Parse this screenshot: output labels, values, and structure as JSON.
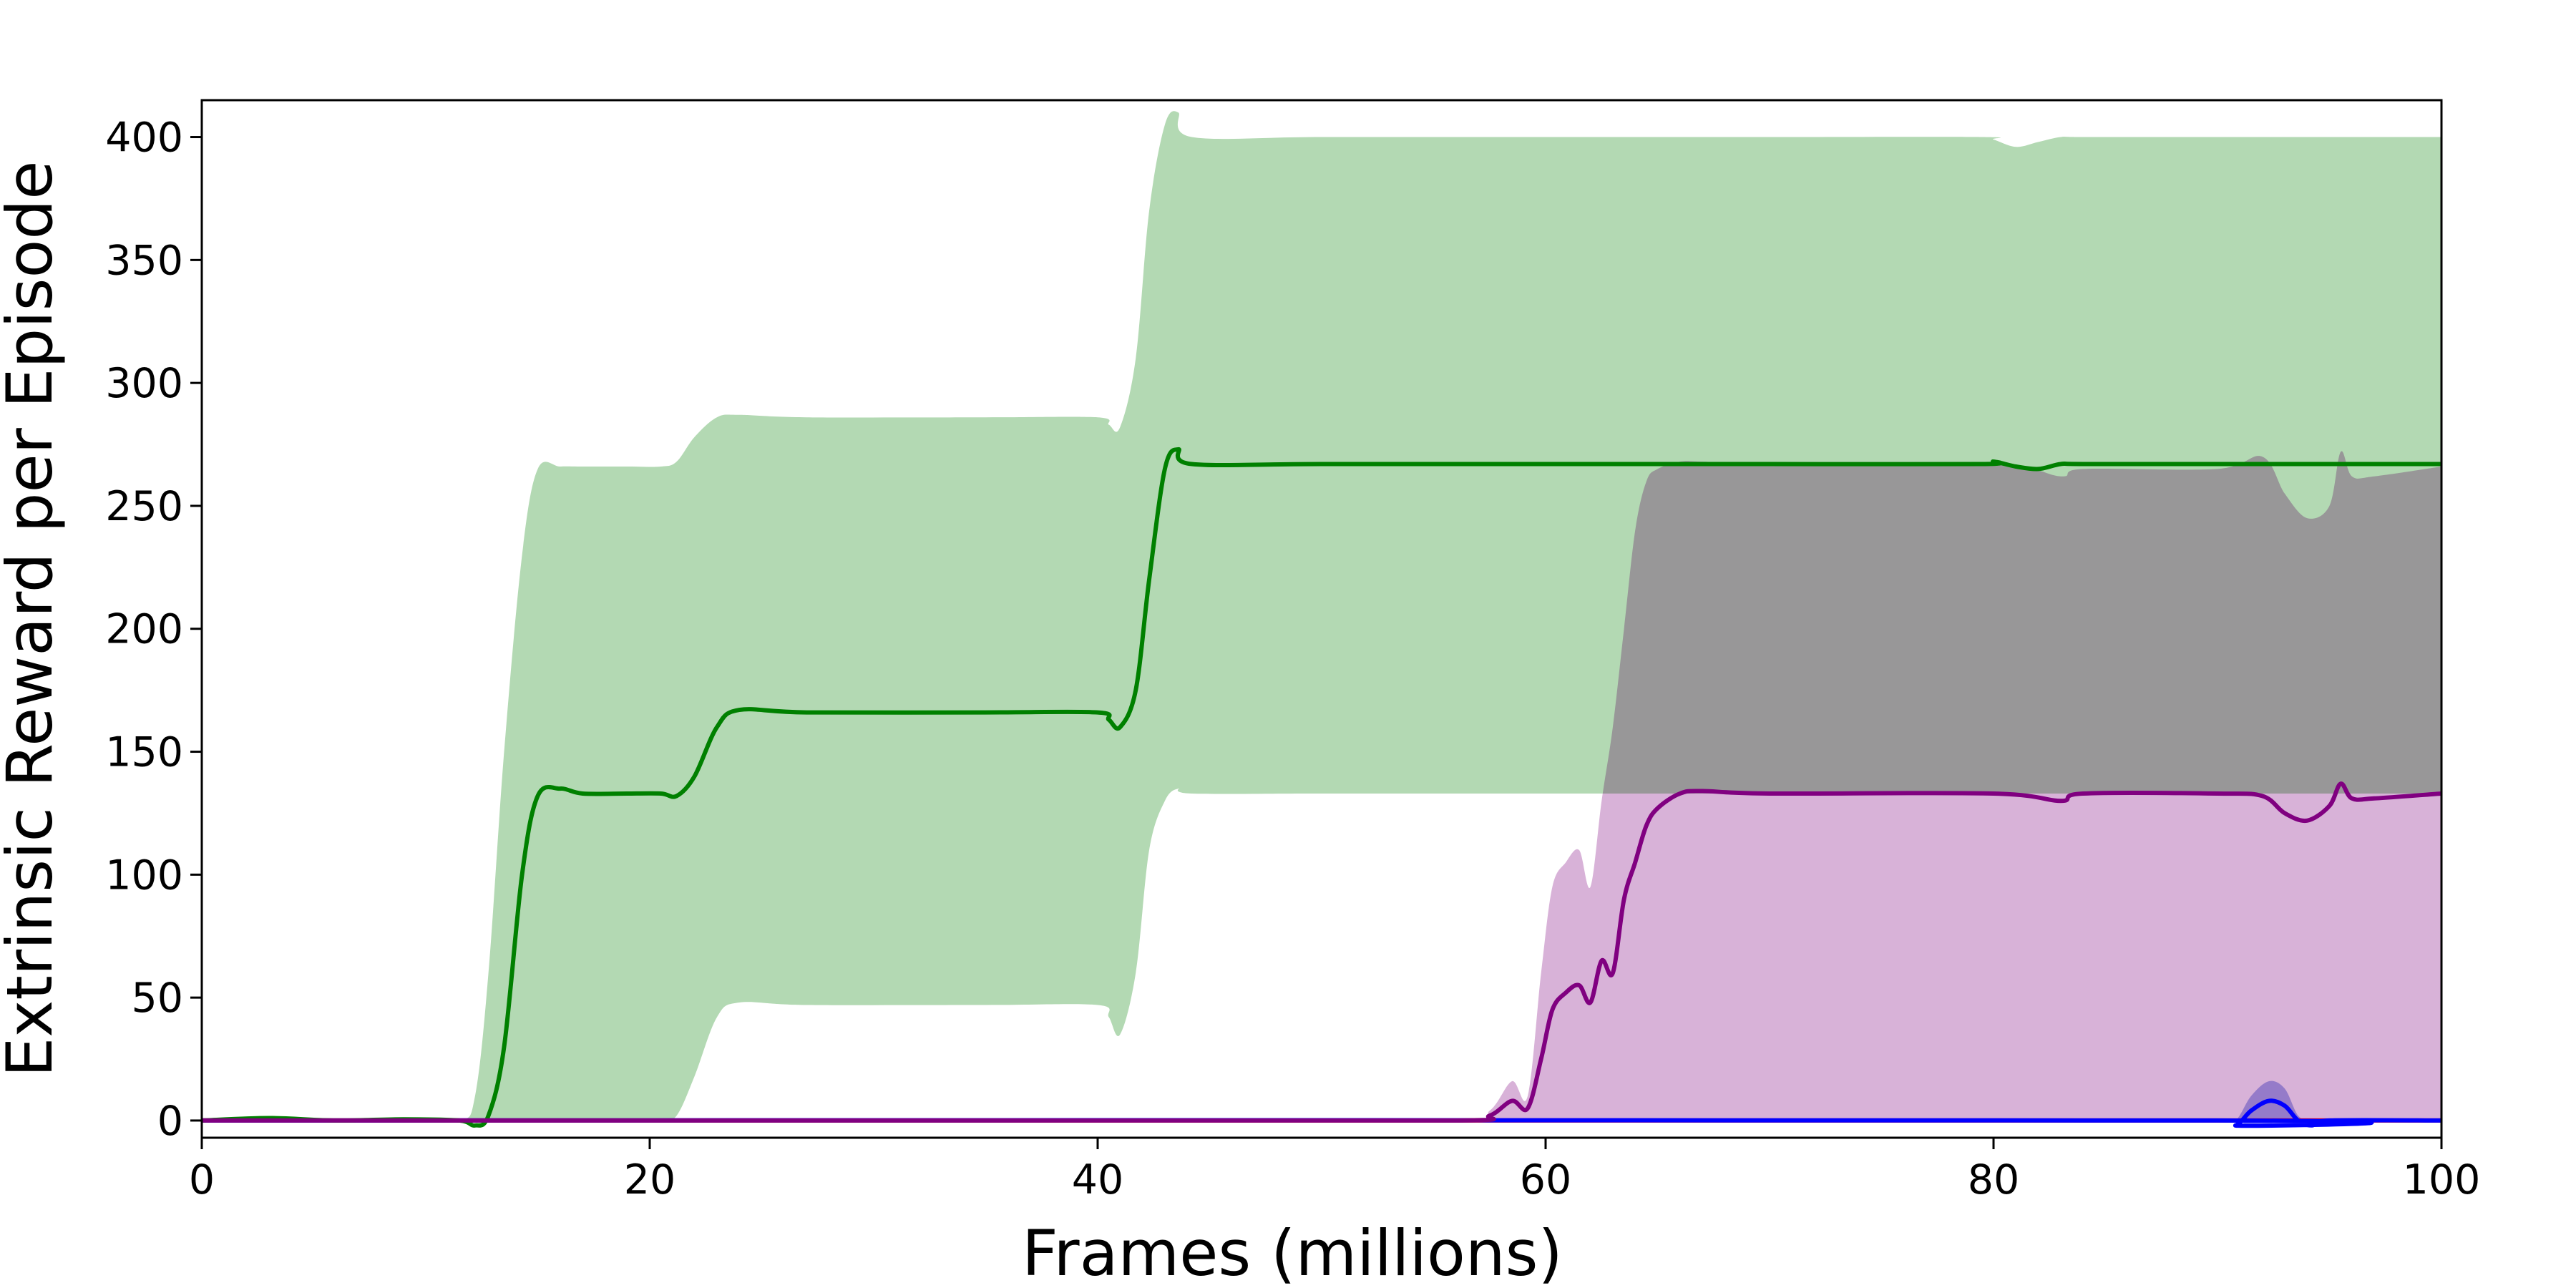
{
  "chart_data": {
    "type": "line",
    "title": "",
    "xlabel": "Frames (millions)",
    "ylabel": "Extrinsic Reward per Episode",
    "xlim": [
      0,
      100
    ],
    "ylim": [
      -7,
      415
    ],
    "xticks": [
      0,
      20,
      40,
      60,
      80,
      100
    ],
    "yticks": [
      0,
      50,
      100,
      150,
      200,
      250,
      300,
      350,
      400
    ],
    "grid": false,
    "legend": "none",
    "series": [
      {
        "color": "#008000",
        "band_color": "#b3d9b3",
        "x": [
          0,
          3,
          6,
          9,
          11.5,
          12.2,
          12.8,
          13.5,
          14.3,
          15,
          16,
          17,
          19,
          20.5,
          21.2,
          22,
          23,
          24,
          27,
          35,
          40,
          40.5,
          41,
          41.7,
          42.3,
          43,
          43.6,
          44.2,
          50,
          60,
          70,
          79.5,
          80,
          81,
          82,
          83,
          84,
          90,
          100
        ],
        "mean": [
          0,
          1,
          0,
          0.5,
          0,
          -2,
          2,
          30,
          100,
          132,
          135,
          133,
          133,
          133,
          132,
          140,
          160,
          167,
          166,
          166,
          166,
          163,
          160,
          175,
          220,
          265,
          273,
          267,
          267,
          267,
          267,
          267,
          268,
          266,
          265,
          267,
          267,
          267,
          267
        ],
        "upper": [
          0,
          1,
          0,
          0.5,
          0,
          10,
          60,
          150,
          230,
          265,
          266,
          266,
          266,
          266,
          268,
          278,
          286,
          287,
          286,
          286,
          286,
          283,
          282,
          310,
          370,
          405,
          410,
          400,
          400,
          400,
          400,
          400,
          399,
          396,
          398,
          400,
          400,
          400,
          400
        ],
        "lower": [
          0,
          1,
          0,
          0.5,
          0,
          0,
          0,
          0,
          0,
          0,
          0,
          0,
          0,
          0,
          2,
          18,
          42,
          48,
          47,
          47,
          47,
          42,
          35,
          60,
          110,
          130,
          135,
          133,
          133,
          133,
          133,
          133,
          133,
          133,
          133,
          133,
          133,
          133,
          133
        ]
      },
      {
        "color": "#800080",
        "band_color": "#d8b2d8",
        "x": [
          0,
          40,
          56,
          57.5,
          58.5,
          59.2,
          59.8,
          60.3,
          60.9,
          61.5,
          62,
          62.5,
          63,
          63.5,
          64,
          64.5,
          65,
          66,
          67,
          70,
          80,
          83,
          84,
          90,
          92,
          93,
          94,
          95,
          95.5,
          96,
          97,
          100
        ],
        "mean": [
          0,
          0,
          0,
          2,
          8,
          5,
          25,
          45,
          52,
          55,
          48,
          65,
          60,
          90,
          105,
          120,
          127,
          133,
          134,
          133,
          133,
          130,
          133,
          133,
          132,
          125,
          122,
          128,
          137,
          131,
          131,
          133
        ],
        "upper": [
          0,
          0,
          0,
          4,
          16,
          10,
          60,
          95,
          105,
          110,
          95,
          130,
          160,
          200,
          240,
          260,
          265,
          268,
          268,
          267,
          267,
          262,
          265,
          265,
          270,
          255,
          245,
          250,
          272,
          262,
          262,
          266
        ],
        "lower": [
          0,
          0,
          0,
          0,
          0,
          0,
          0,
          0,
          0,
          0,
          0,
          0,
          0,
          0,
          0,
          0,
          0,
          0,
          0,
          0,
          0,
          0,
          0,
          0,
          0,
          0,
          0,
          0,
          0,
          0,
          0,
          0
        ]
      },
      {
        "color": "#0000ff",
        "band_color": "#b0b0ee",
        "x": [
          0,
          90,
          90.8,
          91.5,
          92.3,
          93,
          93.6,
          94.2,
          95,
          100
        ],
        "mean": [
          0,
          0,
          -2,
          4,
          8,
          6,
          0,
          -2,
          0,
          0
        ],
        "upper": [
          0,
          0,
          0,
          10,
          16,
          13,
          2,
          0,
          0,
          0
        ],
        "lower": [
          0,
          0,
          -2,
          0,
          0,
          0,
          0,
          -2,
          0,
          0
        ]
      },
      {
        "color": "#ff0000",
        "band_color": "#ffb3b3",
        "x": [
          0,
          100
        ],
        "mean": [
          0,
          0
        ],
        "upper": [
          0,
          0
        ],
        "lower": [
          0,
          0
        ]
      }
    ]
  }
}
